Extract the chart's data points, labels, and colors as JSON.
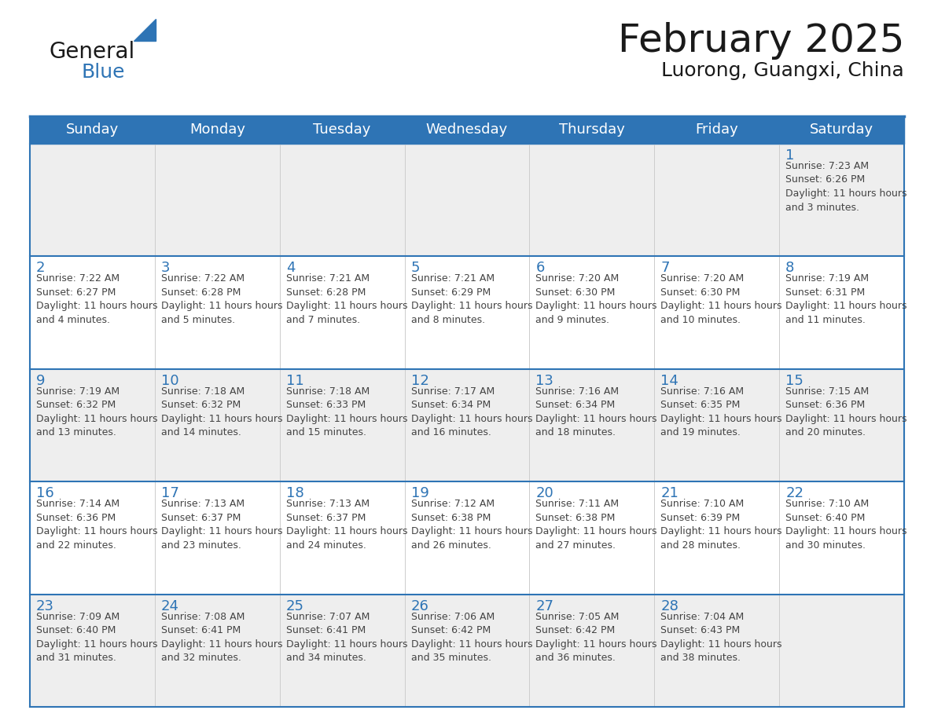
{
  "title": "February 2025",
  "subtitle": "Luorong, Guangxi, China",
  "days_of_week": [
    "Sunday",
    "Monday",
    "Tuesday",
    "Wednesday",
    "Thursday",
    "Friday",
    "Saturday"
  ],
  "header_bg_color": "#2E74B5",
  "header_text_color": "#FFFFFF",
  "cell_bg_week1": "#EEEEEE",
  "cell_bg_week2": "#FFFFFF",
  "cell_bg_week3": "#EEEEEE",
  "cell_bg_week4": "#FFFFFF",
  "cell_bg_week5": "#EEEEEE",
  "day_number_color": "#2E74B5",
  "cell_text_color": "#444444",
  "border_color": "#2E74B5",
  "title_fontsize": 36,
  "subtitle_fontsize": 18,
  "header_fontsize": 13,
  "day_num_fontsize": 13,
  "cell_fontsize": 9,
  "calendar_data": [
    [
      null,
      null,
      null,
      null,
      null,
      null,
      {
        "day": 1,
        "sunrise": "7:23 AM",
        "sunset": "6:26 PM",
        "daylight": "11 hours and 3 minutes."
      }
    ],
    [
      {
        "day": 2,
        "sunrise": "7:22 AM",
        "sunset": "6:27 PM",
        "daylight": "11 hours and 4 minutes."
      },
      {
        "day": 3,
        "sunrise": "7:22 AM",
        "sunset": "6:28 PM",
        "daylight": "11 hours and 5 minutes."
      },
      {
        "day": 4,
        "sunrise": "7:21 AM",
        "sunset": "6:28 PM",
        "daylight": "11 hours and 7 minutes."
      },
      {
        "day": 5,
        "sunrise": "7:21 AM",
        "sunset": "6:29 PM",
        "daylight": "11 hours and 8 minutes."
      },
      {
        "day": 6,
        "sunrise": "7:20 AM",
        "sunset": "6:30 PM",
        "daylight": "11 hours and 9 minutes."
      },
      {
        "day": 7,
        "sunrise": "7:20 AM",
        "sunset": "6:30 PM",
        "daylight": "11 hours and 10 minutes."
      },
      {
        "day": 8,
        "sunrise": "7:19 AM",
        "sunset": "6:31 PM",
        "daylight": "11 hours and 11 minutes."
      }
    ],
    [
      {
        "day": 9,
        "sunrise": "7:19 AM",
        "sunset": "6:32 PM",
        "daylight": "11 hours and 13 minutes."
      },
      {
        "day": 10,
        "sunrise": "7:18 AM",
        "sunset": "6:32 PM",
        "daylight": "11 hours and 14 minutes."
      },
      {
        "day": 11,
        "sunrise": "7:18 AM",
        "sunset": "6:33 PM",
        "daylight": "11 hours and 15 minutes."
      },
      {
        "day": 12,
        "sunrise": "7:17 AM",
        "sunset": "6:34 PM",
        "daylight": "11 hours and 16 minutes."
      },
      {
        "day": 13,
        "sunrise": "7:16 AM",
        "sunset": "6:34 PM",
        "daylight": "11 hours and 18 minutes."
      },
      {
        "day": 14,
        "sunrise": "7:16 AM",
        "sunset": "6:35 PM",
        "daylight": "11 hours and 19 minutes."
      },
      {
        "day": 15,
        "sunrise": "7:15 AM",
        "sunset": "6:36 PM",
        "daylight": "11 hours and 20 minutes."
      }
    ],
    [
      {
        "day": 16,
        "sunrise": "7:14 AM",
        "sunset": "6:36 PM",
        "daylight": "11 hours and 22 minutes."
      },
      {
        "day": 17,
        "sunrise": "7:13 AM",
        "sunset": "6:37 PM",
        "daylight": "11 hours and 23 minutes."
      },
      {
        "day": 18,
        "sunrise": "7:13 AM",
        "sunset": "6:37 PM",
        "daylight": "11 hours and 24 minutes."
      },
      {
        "day": 19,
        "sunrise": "7:12 AM",
        "sunset": "6:38 PM",
        "daylight": "11 hours and 26 minutes."
      },
      {
        "day": 20,
        "sunrise": "7:11 AM",
        "sunset": "6:38 PM",
        "daylight": "11 hours and 27 minutes."
      },
      {
        "day": 21,
        "sunrise": "7:10 AM",
        "sunset": "6:39 PM",
        "daylight": "11 hours and 28 minutes."
      },
      {
        "day": 22,
        "sunrise": "7:10 AM",
        "sunset": "6:40 PM",
        "daylight": "11 hours and 30 minutes."
      }
    ],
    [
      {
        "day": 23,
        "sunrise": "7:09 AM",
        "sunset": "6:40 PM",
        "daylight": "11 hours and 31 minutes."
      },
      {
        "day": 24,
        "sunrise": "7:08 AM",
        "sunset": "6:41 PM",
        "daylight": "11 hours and 32 minutes."
      },
      {
        "day": 25,
        "sunrise": "7:07 AM",
        "sunset": "6:41 PM",
        "daylight": "11 hours and 34 minutes."
      },
      {
        "day": 26,
        "sunrise": "7:06 AM",
        "sunset": "6:42 PM",
        "daylight": "11 hours and 35 minutes."
      },
      {
        "day": 27,
        "sunrise": "7:05 AM",
        "sunset": "6:42 PM",
        "daylight": "11 hours and 36 minutes."
      },
      {
        "day": 28,
        "sunrise": "7:04 AM",
        "sunset": "6:43 PM",
        "daylight": "11 hours and 38 minutes."
      },
      null
    ]
  ]
}
